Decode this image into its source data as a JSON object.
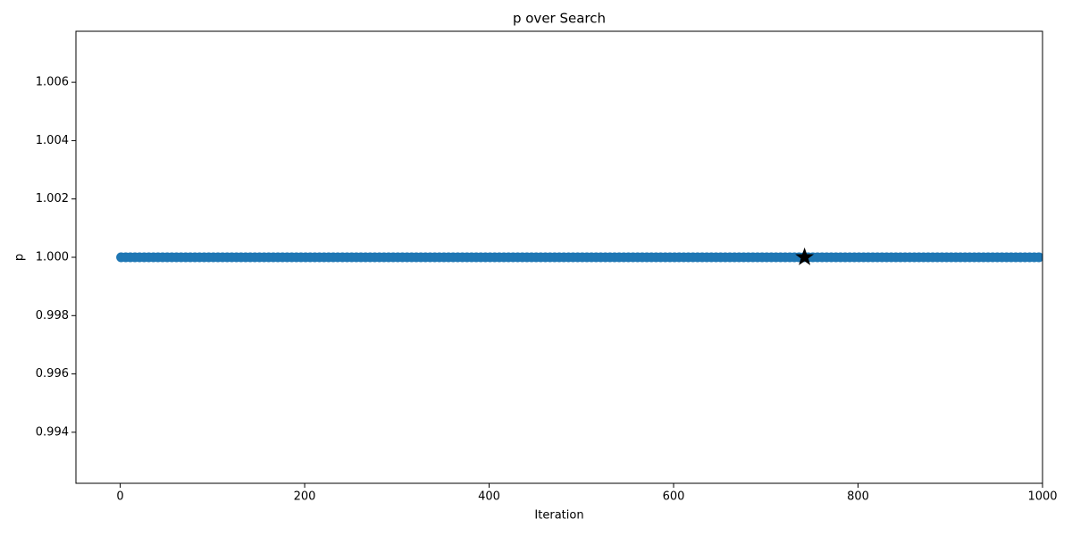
{
  "chart_data": {
    "type": "scatter",
    "title": "p over Search",
    "xlabel": "Iteration",
    "ylabel": "p",
    "xlim": [
      -48,
      1000
    ],
    "ylim": [
      0.99225,
      1.00775
    ],
    "xticks": [
      0,
      200,
      400,
      600,
      800,
      1000
    ],
    "yticks": [
      0.994,
      0.996,
      0.998,
      {
        "value": 1,
        "label": "1.000"
      },
      1.002,
      1.004,
      1.006
    ],
    "series": [
      {
        "color": "#1f77b4",
        "marker": "circle",
        "x": [
          1,
          6,
          11,
          16,
          21,
          26,
          31,
          36,
          41,
          46,
          51,
          56,
          61,
          66,
          71,
          76,
          81,
          86,
          91,
          96,
          101,
          106,
          111,
          116,
          121,
          126,
          131,
          136,
          141,
          146,
          151,
          156,
          161,
          166,
          171,
          176,
          181,
          186,
          191,
          196,
          201,
          206,
          211,
          216,
          221,
          226,
          231,
          236,
          241,
          246,
          251,
          256,
          261,
          266,
          271,
          276,
          281,
          286,
          291,
          296,
          301,
          306,
          311,
          316,
          321,
          326,
          331,
          336,
          341,
          346,
          351,
          356,
          361,
          366,
          371,
          376,
          381,
          386,
          391,
          396,
          401,
          406,
          411,
          416,
          421,
          426,
          431,
          436,
          441,
          446,
          451,
          456,
          461,
          466,
          471,
          476,
          481,
          486,
          491,
          496,
          501,
          506,
          511,
          516,
          521,
          526,
          531,
          536,
          541,
          546,
          551,
          556,
          561,
          566,
          571,
          576,
          581,
          586,
          591,
          596,
          601,
          606,
          611,
          616,
          621,
          626,
          631,
          636,
          641,
          646,
          651,
          656,
          661,
          666,
          671,
          676,
          681,
          686,
          691,
          696,
          701,
          706,
          711,
          716,
          721,
          726,
          731,
          736,
          741,
          746,
          751,
          756,
          761,
          766,
          771,
          776,
          781,
          786,
          791,
          796,
          801,
          806,
          811,
          816,
          821,
          826,
          831,
          836,
          841,
          846,
          851,
          856,
          861,
          866,
          871,
          876,
          881,
          886,
          891,
          896,
          901,
          906,
          911,
          916,
          921,
          926,
          931,
          936,
          941,
          946,
          951,
          956,
          961,
          966,
          971,
          976,
          981,
          986,
          991,
          996
        ],
        "values": [
          1,
          1,
          1,
          1,
          1,
          1,
          1,
          1,
          1,
          1,
          1,
          1,
          1,
          1,
          1,
          1,
          1,
          1,
          1,
          1,
          1,
          1,
          1,
          1,
          1,
          1,
          1,
          1,
          1,
          1,
          1,
          1,
          1,
          1,
          1,
          1,
          1,
          1,
          1,
          1,
          1,
          1,
          1,
          1,
          1,
          1,
          1,
          1,
          1,
          1,
          1,
          1,
          1,
          1,
          1,
          1,
          1,
          1,
          1,
          1,
          1,
          1,
          1,
          1,
          1,
          1,
          1,
          1,
          1,
          1,
          1,
          1,
          1,
          1,
          1,
          1,
          1,
          1,
          1,
          1,
          1,
          1,
          1,
          1,
          1,
          1,
          1,
          1,
          1,
          1,
          1,
          1,
          1,
          1,
          1,
          1,
          1,
          1,
          1,
          1,
          1,
          1,
          1,
          1,
          1,
          1,
          1,
          1,
          1,
          1,
          1,
          1,
          1,
          1,
          1,
          1,
          1,
          1,
          1,
          1,
          1,
          1,
          1,
          1,
          1,
          1,
          1,
          1,
          1,
          1,
          1,
          1,
          1,
          1,
          1,
          1,
          1,
          1,
          1,
          1,
          1,
          1,
          1,
          1,
          1,
          1,
          1,
          1,
          1,
          1,
          1,
          1,
          1,
          1,
          1,
          1,
          1,
          1,
          1,
          1,
          1,
          1,
          1,
          1,
          1,
          1,
          1,
          1,
          1,
          1,
          1,
          1,
          1,
          1,
          1,
          1,
          1,
          1,
          1,
          1,
          1,
          1,
          1,
          1,
          1,
          1,
          1,
          1,
          1,
          1,
          1,
          1,
          1,
          1,
          1,
          1,
          1,
          1,
          1,
          1
        ]
      },
      {
        "color": "#000000",
        "marker": "star",
        "x": [
          742
        ],
        "values": [
          1
        ]
      }
    ]
  }
}
